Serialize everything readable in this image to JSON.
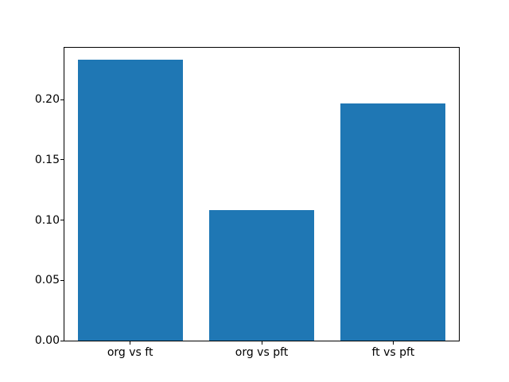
{
  "chart_data": {
    "type": "bar",
    "title": "",
    "xlabel": "",
    "ylabel": "",
    "categories": [
      "org vs ft",
      "org vs pft",
      "ft vs pft"
    ],
    "values": [
      0.233,
      0.108,
      0.197
    ],
    "yticks": [
      0.0,
      0.05,
      0.1,
      0.15,
      0.2
    ],
    "ytick_labels": [
      "0.00",
      "0.05",
      "0.10",
      "0.15",
      "0.20"
    ],
    "ylim": [
      0,
      0.243
    ],
    "xlim_units": [
      -0.5,
      2.5
    ],
    "bar_width_fraction": 0.8,
    "grid": false,
    "legend": null,
    "colors": {
      "bar": "#1f77b4",
      "axis": "#000000",
      "background": "#ffffff",
      "text": "#000000"
    }
  }
}
